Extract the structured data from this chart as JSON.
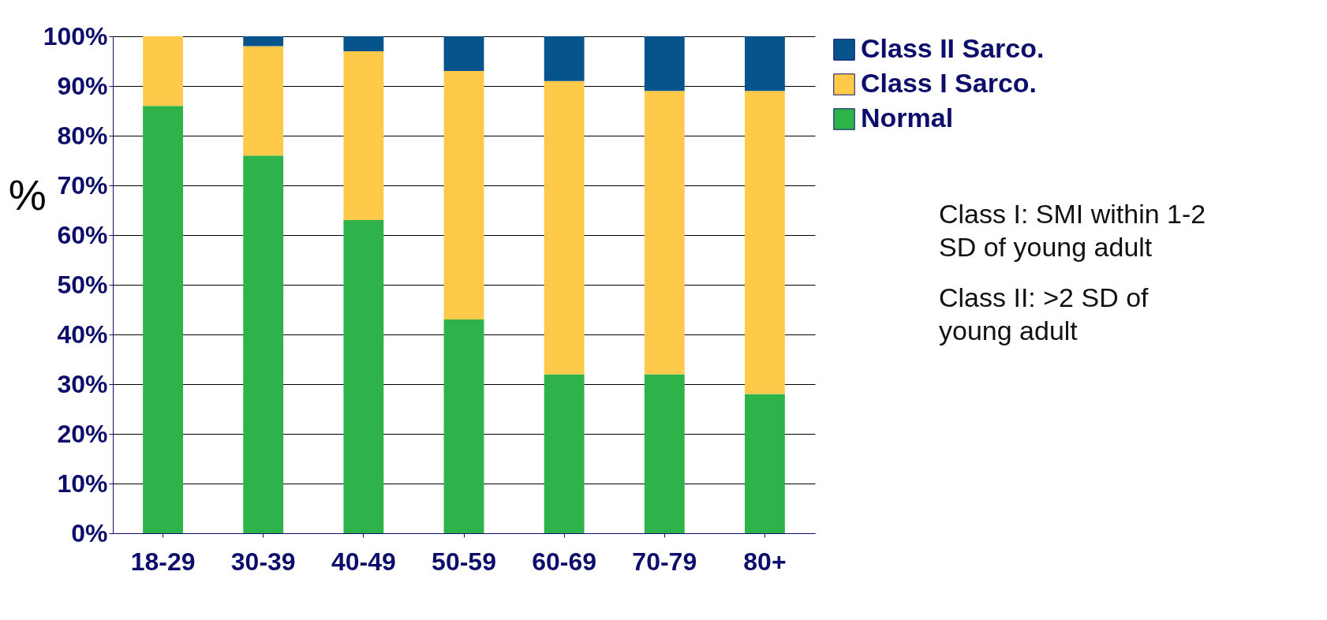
{
  "chart_data": {
    "type": "bar",
    "stacked": true,
    "ylabel": "%",
    "categories": [
      "18-29",
      "30-39",
      "40-49",
      "50-59",
      "60-69",
      "70-79",
      "80+"
    ],
    "series": [
      {
        "name": "Normal",
        "color": "#2db34a",
        "values": [
          86,
          76,
          63,
          43,
          32,
          32,
          28
        ]
      },
      {
        "name": "Class I Sarco.",
        "color": "#ffc94a",
        "values": [
          14,
          22,
          34,
          50,
          59,
          57,
          61
        ]
      },
      {
        "name": "Class II Sarco.",
        "color": "#07548c",
        "values": [
          0,
          2,
          3,
          7,
          9,
          11,
          11
        ]
      }
    ],
    "ylim": [
      0,
      100
    ],
    "yticks": [
      {
        "value": 0,
        "label": "0%"
      },
      {
        "value": 10,
        "label": "10%"
      },
      {
        "value": 20,
        "label": "20%"
      },
      {
        "value": 30,
        "label": "30%"
      },
      {
        "value": 40,
        "label": "40%"
      },
      {
        "value": 50,
        "label": "50%"
      },
      {
        "value": 60,
        "label": "60%"
      },
      {
        "value": 70,
        "label": "70%"
      },
      {
        "value": 80,
        "label": "80%"
      },
      {
        "value": 90,
        "label": "90%"
      },
      {
        "value": 100,
        "label": "100%"
      }
    ],
    "grid": "y",
    "legend": "top right",
    "annotations": [
      "Class I: SMI within 1-2 SD of young adult",
      "Class II: >2 SD of young adult"
    ]
  }
}
